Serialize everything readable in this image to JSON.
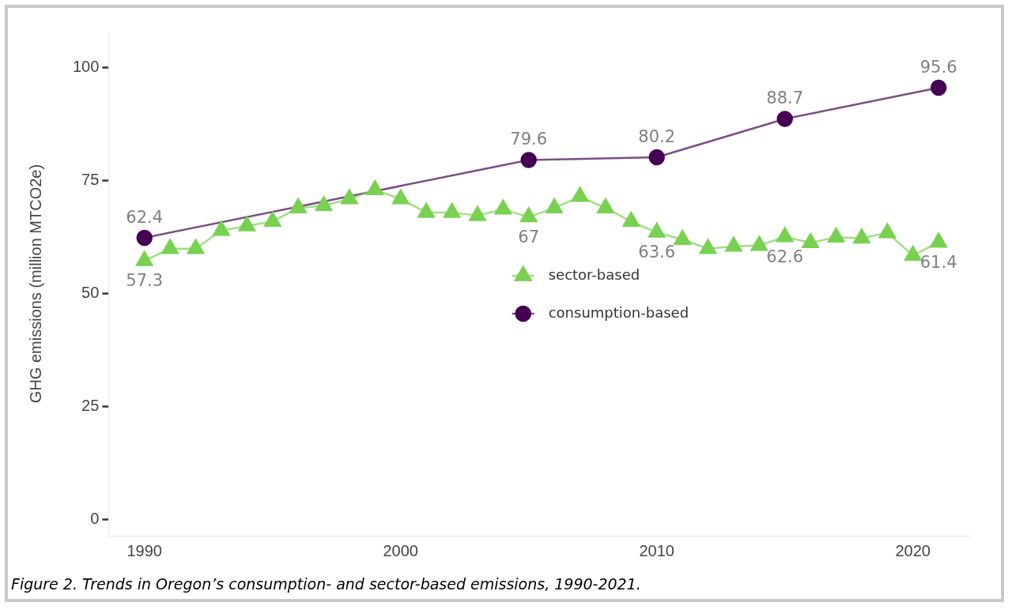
{
  "chart_data": {
    "type": "line",
    "ylabel": "GHG emissions (million MTCO2e)",
    "annotations": [
      "Figure 2. Trends in Oregon’s consumption- and sector-based emissions, 1990-2021."
    ],
    "xlim": [
      1988.6,
      2022.2
    ],
    "xticks": [
      1990,
      2000,
      2010,
      2020
    ],
    "ylim": [
      -3.5,
      108
    ],
    "yticks": [
      0,
      25,
      50,
      75,
      100
    ],
    "grid": false,
    "legend": "center",
    "series": [
      {
        "name": "sector-based",
        "color": "#78d151",
        "marker": "triangle",
        "x": [
          1990,
          1991,
          1992,
          1993,
          1994,
          1995,
          1996,
          1997,
          1998,
          1999,
          2000,
          2001,
          2002,
          2003,
          2004,
          2005,
          2006,
          2007,
          2008,
          2009,
          2010,
          2011,
          2012,
          2013,
          2014,
          2015,
          2016,
          2017,
          2018,
          2019,
          2020,
          2021
        ],
        "values": [
          57.3,
          60,
          60,
          64,
          65,
          66,
          69,
          69.5,
          71,
          73,
          71,
          68,
          68,
          67.3,
          68.7,
          67,
          69,
          71.5,
          69,
          66,
          63.6,
          62,
          60,
          60.5,
          60.7,
          62.6,
          61.3,
          62.5,
          62.3,
          63.5,
          58.5,
          61.4
        ],
        "value_labels": [
          "57.3",
          null,
          null,
          null,
          null,
          null,
          null,
          null,
          null,
          null,
          null,
          null,
          null,
          null,
          null,
          "67",
          null,
          null,
          null,
          null,
          "63.6",
          null,
          null,
          null,
          null,
          "62.6",
          null,
          null,
          null,
          null,
          null,
          "61.4"
        ]
      },
      {
        "name": "consumption-based",
        "color": "#440154",
        "marker": "circle",
        "x": [
          1990,
          2005,
          2010,
          2015,
          2021
        ],
        "values": [
          62.4,
          79.6,
          80.2,
          88.7,
          95.6
        ],
        "value_labels": [
          "62.4",
          "79.6",
          "80.2",
          "88.7",
          "95.6"
        ]
      }
    ]
  }
}
